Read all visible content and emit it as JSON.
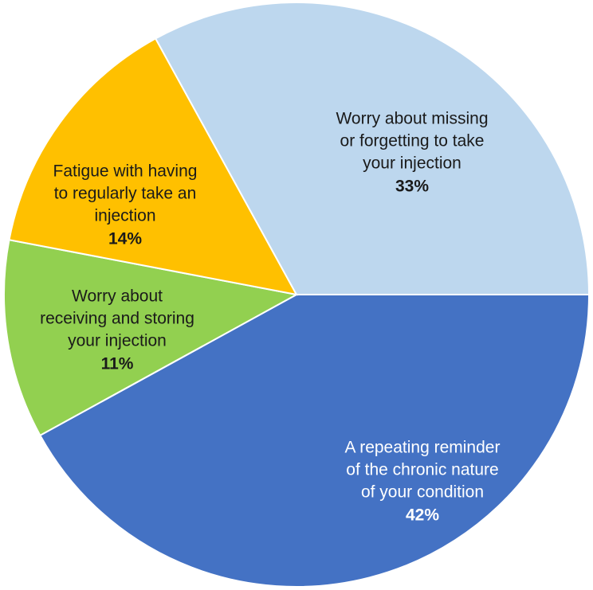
{
  "chart_data": {
    "type": "pie",
    "categories": [
      [
        "A repeating reminder",
        "of the chronic nature",
        "of your condition"
      ],
      [
        "Worry about",
        "receiving and storing",
        "your injection"
      ],
      [
        "Fatigue with having",
        "to regularly take an",
        "injection"
      ],
      [
        "Worry about missing",
        "or forgetting to take",
        "your injection"
      ]
    ],
    "values": [
      42,
      11,
      14,
      33
    ],
    "value_labels": [
      "42%",
      "11%",
      "14%",
      "33%"
    ],
    "colors": [
      "#4472c4",
      "#92d050",
      "#ffc000",
      "#bdd7ee"
    ],
    "label_colors": [
      "#ffffff",
      "#1a1a1a",
      "#1a1a1a",
      "#1a1a1a"
    ]
  }
}
